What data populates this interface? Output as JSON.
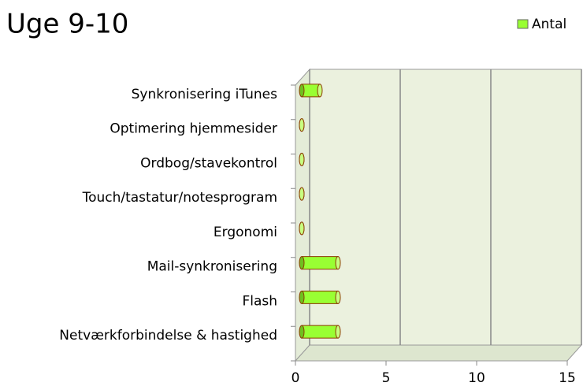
{
  "chart_data": {
    "type": "bar",
    "orientation": "horizontal",
    "title": "Uge 9-10",
    "categories": [
      "Netværkforbindelse & hastighed",
      "Flash",
      "Mail-synkronisering",
      "Ergonomi",
      "Touch/tastatur/notesprogram",
      "Ordbog/stavekontrol",
      "Optimering hjemmesider",
      "Synkronisering iTunes"
    ],
    "series": [
      {
        "name": "Antal",
        "color": "#99ff33",
        "values": [
          2,
          2,
          2,
          0,
          0,
          0,
          0,
          1
        ]
      }
    ],
    "xlim": [
      0,
      15
    ],
    "xticks": [
      0,
      5,
      10,
      15
    ],
    "grid": true,
    "legend": "top-right"
  }
}
